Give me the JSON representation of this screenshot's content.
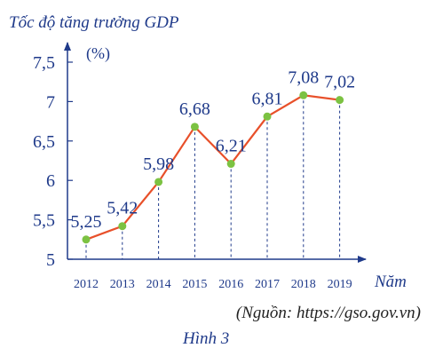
{
  "chart_data": {
    "type": "line",
    "title": "Tốc độ tăng trưởng GDP",
    "ylabel": "(%)",
    "xlabel": "Năm",
    "categories": [
      "2012",
      "2013",
      "2014",
      "2015",
      "2016",
      "2017",
      "2018",
      "2019"
    ],
    "values": [
      5.25,
      5.42,
      5.98,
      6.68,
      6.21,
      6.81,
      7.08,
      7.02
    ],
    "data_labels": [
      "5,25",
      "5,42",
      "5,98",
      "6,68",
      "6,21",
      "6,81",
      "7,08",
      "7,02"
    ],
    "ylim": [
      5,
      7.5
    ],
    "yticks": [
      5,
      5.5,
      6,
      6.5,
      7,
      7.5
    ],
    "ytick_labels": [
      "5",
      "5,5",
      "6",
      "6,5",
      "7",
      "7,5"
    ],
    "grid": false,
    "drop_lines": true,
    "colors": {
      "line": "#e8502a",
      "marker": "#7cc242",
      "text": "#1f3a8a",
      "drop_line": "#1f3a8a"
    }
  },
  "source": "(Nguồn: https://gso.gov.vn)",
  "figure_caption": "Hình 3"
}
